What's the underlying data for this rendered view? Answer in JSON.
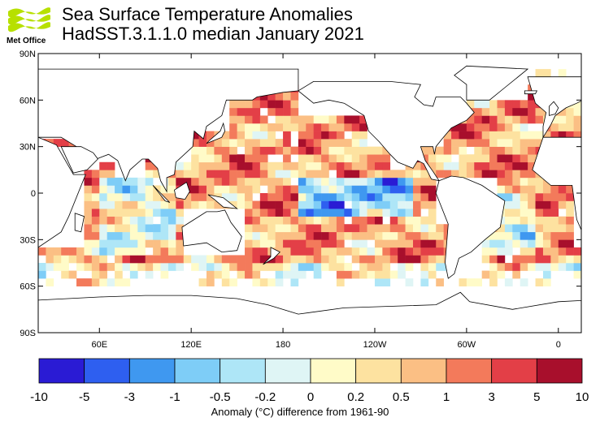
{
  "header": {
    "logo_text": "Met Office",
    "title_line1": "Sea Surface Temperature Anomalies",
    "title_line2": "HadSST.3.1.1.0 median January 2021"
  },
  "map": {
    "projection": "equirectangular",
    "lon_range": [
      20,
      375
    ],
    "lat_range": [
      -90,
      90
    ],
    "lat_ticks": [
      {
        "value": 90,
        "label": "90N"
      },
      {
        "value": 60,
        "label": "60N"
      },
      {
        "value": 30,
        "label": "30N"
      },
      {
        "value": 0,
        "label": "0"
      },
      {
        "value": -30,
        "label": "30S"
      },
      {
        "value": -60,
        "label": "60S"
      },
      {
        "value": -90,
        "label": "90S"
      }
    ],
    "lon_ticks": [
      {
        "value": 60,
        "label": "60E"
      },
      {
        "value": 120,
        "label": "120E"
      },
      {
        "value": 180,
        "label": "180"
      },
      {
        "value": 240,
        "label": "120W"
      },
      {
        "value": 300,
        "label": "60W"
      },
      {
        "value": 360,
        "label": "0"
      }
    ]
  },
  "legend": {
    "boundaries": [
      "-10",
      "-5",
      "-3",
      "-1",
      "-0.5",
      "-0.2",
      "0",
      "0.2",
      "0.5",
      "1",
      "3",
      "5",
      "10"
    ],
    "colors": [
      "#2a1bd4",
      "#2e5ff0",
      "#3f98f0",
      "#7ecdf7",
      "#aee6f7",
      "#dff5f5",
      "#fffbc8",
      "#fde2a0",
      "#fbbf84",
      "#f37a5b",
      "#e33f47",
      "#a80f2c"
    ],
    "caption": "Anomaly (°C) difference from 1961-90"
  },
  "colors": {
    "land": "#ffffff",
    "coast": "#000000",
    "no_data": "#ffffff"
  }
}
